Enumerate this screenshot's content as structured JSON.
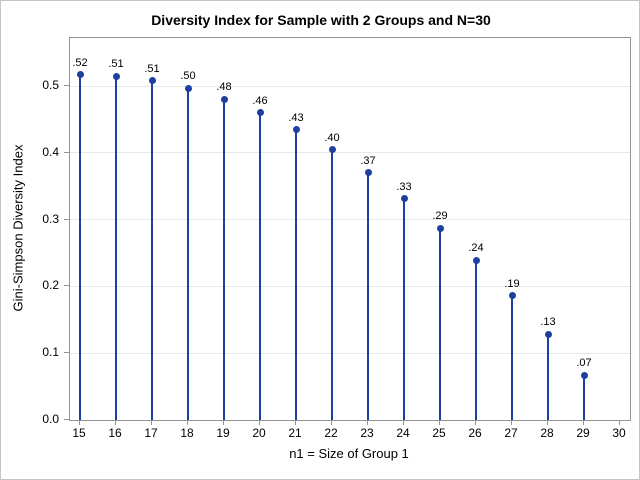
{
  "chart_data": {
    "type": "lollipop",
    "title": "Diversity Index for Sample with 2 Groups and N=30",
    "xlabel": "n1 = Size of Group 1",
    "ylabel": "Gini-Simpson Diversity Index",
    "x": [
      15,
      16,
      17,
      18,
      19,
      20,
      21,
      22,
      23,
      24,
      25,
      26,
      27,
      28,
      29
    ],
    "values": [
      0.5172,
      0.5149,
      0.508,
      0.4966,
      0.4805,
      0.4598,
      0.4345,
      0.4046,
      0.3701,
      0.331,
      0.2874,
      0.2391,
      0.1862,
      0.1287,
      0.0667
    ],
    "point_labels": [
      ".52",
      ".51",
      ".51",
      ".50",
      ".48",
      ".46",
      ".43",
      ".40",
      ".37",
      ".33",
      ".29",
      ".24",
      ".19",
      ".13",
      ".07"
    ],
    "x_ticks": [
      "15",
      "16",
      "17",
      "18",
      "19",
      "20",
      "21",
      "22",
      "23",
      "24",
      "25",
      "26",
      "27",
      "28",
      "29",
      "30"
    ],
    "x_tick_values": [
      15,
      16,
      17,
      18,
      19,
      20,
      21,
      22,
      23,
      24,
      25,
      26,
      27,
      28,
      29,
      30
    ],
    "y_ticks": [
      "0.0",
      "0.1",
      "0.2",
      "0.3",
      "0.4",
      "0.5"
    ],
    "y_tick_values": [
      0.0,
      0.1,
      0.2,
      0.3,
      0.4,
      0.5
    ],
    "xlim": [
      14.72,
      30.28
    ],
    "ylim": [
      0.0,
      0.572
    ],
    "grid": "horizontal-only",
    "legend": "none",
    "colors": {
      "stem": "#1E3F9F",
      "marker": "#1E3F9F",
      "gridline": "#E8E8E8",
      "axis_frame": "#949494",
      "tick": "#949494",
      "text": "#000000",
      "background": "#FFFFFF",
      "figure_border": "#C2C4C6"
    }
  }
}
